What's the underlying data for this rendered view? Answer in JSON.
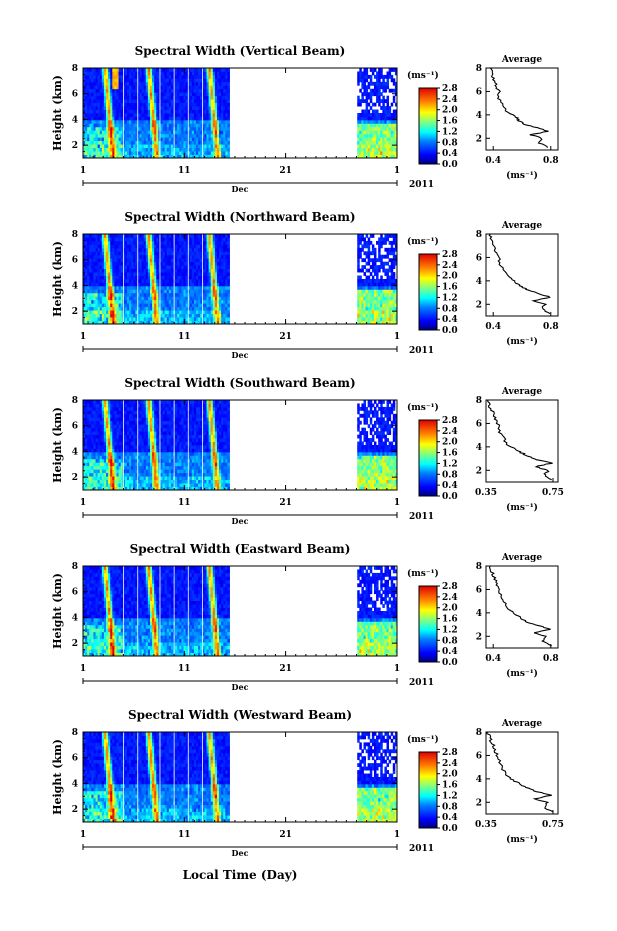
{
  "page": {
    "xlabel": "Local Time (Day)",
    "year": "2011",
    "month": "Dec"
  },
  "chart_data": [
    {
      "type": "heatmap",
      "title": "Spectral Width (Vertical Beam)",
      "ylabel": "Height (km)",
      "xlabel": "Local Time (Day)",
      "x_ticks": [
        "1",
        "11",
        "21",
        "1"
      ],
      "y_ticks": [
        "2",
        "4",
        "6",
        "8"
      ],
      "ylim": [
        1,
        8
      ],
      "xlim": [
        1,
        32
      ],
      "colorbar_label": "(ms⁻¹)",
      "colorbar_ticks": [
        "0.0",
        "0.4",
        "0.8",
        "1.2",
        "1.6",
        "2.0",
        "2.4",
        "2.8"
      ],
      "data_gap_days": [
        15.5,
        28.0
      ],
      "avg_title": "Average",
      "avg_xlabel": "(ms⁻¹)",
      "avg_xticks": [
        "0.4",
        "0.8"
      ],
      "avg_xlim": [
        0.35,
        0.85
      ],
      "avg_yticks": [
        "2",
        "4",
        "6",
        "8"
      ],
      "avg_profile": [
        [
          1.2,
          0.78
        ],
        [
          1.6,
          0.72
        ],
        [
          2.0,
          0.74
        ],
        [
          2.3,
          0.66
        ],
        [
          2.6,
          0.78
        ],
        [
          2.9,
          0.7
        ],
        [
          3.2,
          0.62
        ],
        [
          3.5,
          0.58
        ],
        [
          3.8,
          0.56
        ],
        [
          4.2,
          0.5
        ],
        [
          4.8,
          0.47
        ],
        [
          5.4,
          0.44
        ],
        [
          6.0,
          0.44
        ],
        [
          6.5,
          0.42
        ],
        [
          7.0,
          0.4
        ],
        [
          7.5,
          0.39
        ],
        [
          8.0,
          0.38
        ]
      ]
    },
    {
      "type": "heatmap",
      "title": "Spectral Width (Northward Beam)",
      "ylabel": "Height (km)",
      "xlabel": "Local Time (Day)",
      "x_ticks": [
        "1",
        "11",
        "21",
        "1"
      ],
      "y_ticks": [
        "2",
        "4",
        "6",
        "8"
      ],
      "ylim": [
        1,
        8
      ],
      "xlim": [
        1,
        32
      ],
      "colorbar_label": "(ms⁻¹)",
      "colorbar_ticks": [
        "0.0",
        "0.4",
        "0.8",
        "1.2",
        "1.6",
        "2.0",
        "2.4",
        "2.8"
      ],
      "data_gap_days": [
        15.5,
        28.0
      ],
      "avg_title": "Average",
      "avg_xlabel": "(ms⁻¹)",
      "avg_xticks": [
        "0.4",
        "0.8"
      ],
      "avg_xlim": [
        0.35,
        0.85
      ],
      "avg_yticks": [
        "2",
        "4",
        "6",
        "8"
      ],
      "avg_profile": [
        [
          1.2,
          0.8
        ],
        [
          1.6,
          0.74
        ],
        [
          2.0,
          0.76
        ],
        [
          2.3,
          0.68
        ],
        [
          2.6,
          0.8
        ],
        [
          2.9,
          0.72
        ],
        [
          3.2,
          0.64
        ],
        [
          3.5,
          0.6
        ],
        [
          3.8,
          0.56
        ],
        [
          4.2,
          0.52
        ],
        [
          4.8,
          0.48
        ],
        [
          5.4,
          0.45
        ],
        [
          6.0,
          0.44
        ],
        [
          6.5,
          0.42
        ],
        [
          7.0,
          0.41
        ],
        [
          7.5,
          0.39
        ],
        [
          8.0,
          0.38
        ]
      ]
    },
    {
      "type": "heatmap",
      "title": "Spectral Width (Southward Beam)",
      "ylabel": "Height (km)",
      "xlabel": "Local Time (Day)",
      "x_ticks": [
        "1",
        "11",
        "21",
        "1"
      ],
      "y_ticks": [
        "2",
        "4",
        "6",
        "8"
      ],
      "ylim": [
        1,
        8
      ],
      "xlim": [
        1,
        32
      ],
      "colorbar_label": "(ms⁻¹)",
      "colorbar_ticks": [
        "0.0",
        "0.4",
        "0.8",
        "1.2",
        "1.6",
        "2.0",
        "2.4",
        "2.8"
      ],
      "data_gap_days": [
        15.5,
        28.0
      ],
      "avg_title": "Average",
      "avg_xlabel": "(ms⁻¹)",
      "avg_xticks": [
        "0.35",
        "0.75"
      ],
      "avg_xlim": [
        0.35,
        0.78
      ],
      "avg_yticks": [
        "2",
        "4",
        "6",
        "8"
      ],
      "avg_profile": [
        [
          1.2,
          0.74
        ],
        [
          1.6,
          0.7
        ],
        [
          2.0,
          0.72
        ],
        [
          2.3,
          0.64
        ],
        [
          2.6,
          0.74
        ],
        [
          2.9,
          0.66
        ],
        [
          3.2,
          0.6
        ],
        [
          3.5,
          0.56
        ],
        [
          3.8,
          0.52
        ],
        [
          4.2,
          0.48
        ],
        [
          4.8,
          0.45
        ],
        [
          5.4,
          0.43
        ],
        [
          6.0,
          0.42
        ],
        [
          6.5,
          0.4
        ],
        [
          7.0,
          0.39
        ],
        [
          7.5,
          0.37
        ],
        [
          8.0,
          0.36
        ]
      ]
    },
    {
      "type": "heatmap",
      "title": "Spectral Width (Eastward Beam)",
      "ylabel": "Height (km)",
      "xlabel": "Local Time (Day)",
      "x_ticks": [
        "1",
        "11",
        "21",
        "1"
      ],
      "y_ticks": [
        "2",
        "4",
        "6",
        "8"
      ],
      "ylim": [
        1,
        8
      ],
      "xlim": [
        1,
        32
      ],
      "colorbar_label": "(ms⁻¹)",
      "colorbar_ticks": [
        "0.0",
        "0.4",
        "0.8",
        "1.2",
        "1.6",
        "2.0",
        "2.4",
        "2.8"
      ],
      "data_gap_days": [
        15.5,
        28.0
      ],
      "avg_title": "Average",
      "avg_xlabel": "(ms⁻¹)",
      "avg_xticks": [
        "0.4",
        "0.8"
      ],
      "avg_xlim": [
        0.35,
        0.85
      ],
      "avg_yticks": [
        "2",
        "4",
        "6",
        "8"
      ],
      "avg_profile": [
        [
          1.2,
          0.8
        ],
        [
          1.6,
          0.74
        ],
        [
          2.0,
          0.76
        ],
        [
          2.3,
          0.68
        ],
        [
          2.6,
          0.8
        ],
        [
          2.9,
          0.72
        ],
        [
          3.2,
          0.64
        ],
        [
          3.5,
          0.6
        ],
        [
          3.8,
          0.56
        ],
        [
          4.2,
          0.52
        ],
        [
          4.8,
          0.48
        ],
        [
          5.4,
          0.45
        ],
        [
          6.0,
          0.44
        ],
        [
          6.5,
          0.42
        ],
        [
          7.0,
          0.41
        ],
        [
          7.5,
          0.39
        ],
        [
          8.0,
          0.38
        ]
      ]
    },
    {
      "type": "heatmap",
      "title": "Spectral Width (Westward Beam)",
      "ylabel": "Height (km)",
      "xlabel": "Local Time (Day)",
      "x_ticks": [
        "1",
        "11",
        "21",
        "1"
      ],
      "y_ticks": [
        "2",
        "4",
        "6",
        "8"
      ],
      "ylim": [
        1,
        8
      ],
      "xlim": [
        1,
        32
      ],
      "colorbar_label": "(ms⁻¹)",
      "colorbar_ticks": [
        "0.0",
        "0.4",
        "0.8",
        "1.2",
        "1.6",
        "2.0",
        "2.4",
        "2.8"
      ],
      "data_gap_days": [
        15.5,
        28.0
      ],
      "avg_title": "Average",
      "avg_xlabel": "(ms⁻¹)",
      "avg_xticks": [
        "0.35",
        "0.75"
      ],
      "avg_xlim": [
        0.35,
        0.78
      ],
      "avg_yticks": [
        "2",
        "4",
        "6",
        "8"
      ],
      "avg_profile": [
        [
          1.2,
          0.74
        ],
        [
          1.6,
          0.7
        ],
        [
          2.0,
          0.72
        ],
        [
          2.3,
          0.64
        ],
        [
          2.6,
          0.74
        ],
        [
          2.9,
          0.66
        ],
        [
          3.2,
          0.6
        ],
        [
          3.5,
          0.56
        ],
        [
          3.8,
          0.52
        ],
        [
          4.2,
          0.48
        ],
        [
          4.8,
          0.45
        ],
        [
          5.4,
          0.43
        ],
        [
          6.0,
          0.42
        ],
        [
          6.5,
          0.4
        ],
        [
          7.0,
          0.39
        ],
        [
          7.5,
          0.37
        ],
        [
          8.0,
          0.36
        ]
      ]
    }
  ]
}
